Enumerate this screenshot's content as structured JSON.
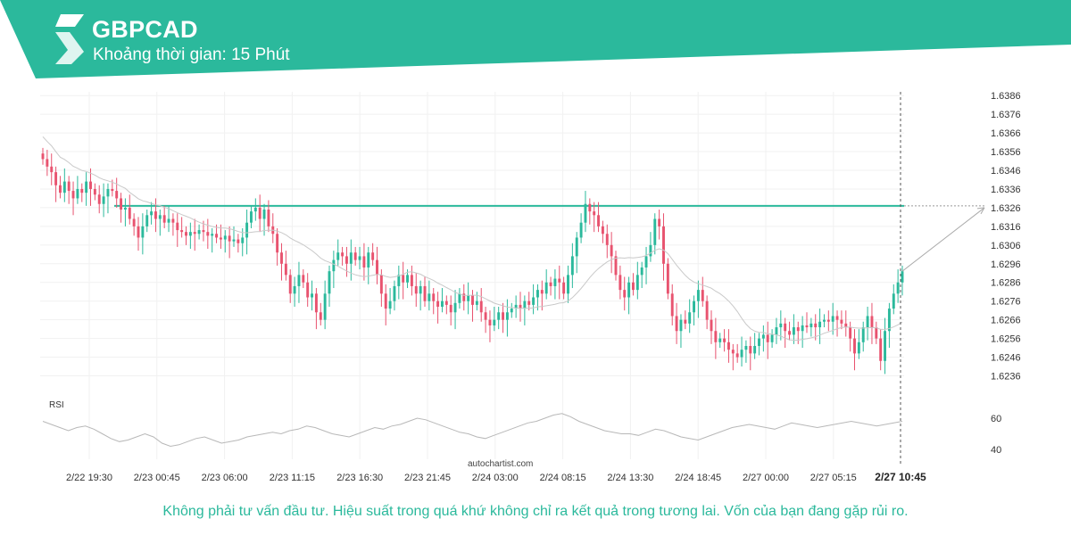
{
  "header": {
    "title": "GBPCAD",
    "subtitle": "Khoảng thời gian: 15 Phút",
    "bg_color": "#2bb99c"
  },
  "footer": {
    "disclaimer": "Không phải tư vấn đầu tư. Hiệu suất trong quá khứ không chỉ ra kết quả trong tương lai. Vốn của bạn đang gặp rủi ro."
  },
  "watermark": "autochartist.com",
  "chart_data": {
    "type": "candlestick",
    "symbol": "GBPCAD",
    "interval": "15 Phút",
    "y_ticks": [
      "1.6386",
      "1.6376",
      "1.6366",
      "1.6356",
      "1.6346",
      "1.6336",
      "1.6326",
      "1.6316",
      "1.6306",
      "1.6296",
      "1.6286",
      "1.6276",
      "1.6266",
      "1.6256",
      "1.6246",
      "1.6236"
    ],
    "ylim": [
      1.6231,
      1.6388
    ],
    "x_tick_labels": [
      "2/22 19:30",
      "2/23 00:45",
      "2/23 06:00",
      "2/23 11:15",
      "2/23 16:30",
      "2/23 21:45",
      "2/24 03:00",
      "2/24 08:15",
      "2/24 13:30",
      "2/24 18:45",
      "2/27 00:00",
      "2/27 05:15"
    ],
    "current_time_label": "2/27 10:45",
    "resistance_level": 1.6327,
    "resistance_start_label": "2/22 19:30",
    "projection": {
      "from": 1.6292,
      "to": 1.6326
    },
    "up_color": "#2bb99c",
    "down_color": "#e8536f",
    "candles": [
      1.6352,
      1.6348,
      1.6345,
      1.6338,
      1.6334,
      1.634,
      1.6335,
      1.6331,
      1.6336,
      1.6334,
      1.634,
      1.6336,
      1.6333,
      1.6328,
      1.6332,
      1.6336,
      1.6335,
      1.6331,
      1.6325,
      1.6326,
      1.632,
      1.6316,
      1.631,
      1.6316,
      1.6322,
      1.6324,
      1.632,
      1.6322,
      1.6318,
      1.632,
      1.6318,
      1.6314,
      1.6313,
      1.6311,
      1.6313,
      1.6312,
      1.6314,
      1.6313,
      1.6311,
      1.6312,
      1.631,
      1.6309,
      1.6311,
      1.6308,
      1.6309,
      1.6307,
      1.631,
      1.6318,
      1.6324,
      1.6326,
      1.632,
      1.6325,
      1.6316,
      1.6312,
      1.6302,
      1.6296,
      1.629,
      1.628,
      1.6284,
      1.629,
      1.6286,
      1.6278,
      1.628,
      1.627,
      1.6266,
      1.628,
      1.6292,
      1.6298,
      1.6302,
      1.63,
      1.6296,
      1.6302,
      1.6298,
      1.63,
      1.6294,
      1.6302,
      1.6298,
      1.629,
      1.628,
      1.6272,
      1.6276,
      1.6284,
      1.629,
      1.6286,
      1.629,
      1.6284,
      1.628,
      1.6284,
      1.6276,
      1.628,
      1.6276,
      1.6273,
      1.6276,
      1.6274,
      1.627,
      1.6275,
      1.628,
      1.6276,
      1.6279,
      1.6274,
      1.6276,
      1.627,
      1.6266,
      1.6263,
      1.6266,
      1.627,
      1.6266,
      1.627,
      1.6272,
      1.6274,
      1.6272,
      1.6276,
      1.6274,
      1.6278,
      1.6282,
      1.628,
      1.6286,
      1.6284,
      1.6288,
      1.6286,
      1.628,
      1.629,
      1.63,
      1.631,
      1.6318,
      1.6328,
      1.6324,
      1.6322,
      1.6316,
      1.6312,
      1.6306,
      1.63,
      1.629,
      1.6282,
      1.6278,
      1.6286,
      1.6282,
      1.629,
      1.6294,
      1.63,
      1.6306,
      1.632,
      1.6316,
      1.6296,
      1.628,
      1.6268,
      1.626,
      1.6266,
      1.6264,
      1.627,
      1.6276,
      1.6282,
      1.6276,
      1.6266,
      1.626,
      1.6254,
      1.6256,
      1.6254,
      1.625,
      1.6248,
      1.6246,
      1.625,
      1.6252,
      1.6248,
      1.6252,
      1.6256,
      1.6258,
      1.6254,
      1.6258,
      1.6262,
      1.6264,
      1.626,
      1.6258,
      1.6262,
      1.626,
      1.6263,
      1.6262,
      1.6264,
      1.6262,
      1.6265,
      1.6266,
      1.6265,
      1.6268,
      1.6266,
      1.6264,
      1.6262,
      1.6256,
      1.6248,
      1.6254,
      1.6262,
      1.6268,
      1.6262,
      1.6256,
      1.6244,
      1.626,
      1.6272,
      1.628,
      1.6286,
      1.6292
    ],
    "indicator": {
      "name": "RSI",
      "y_ticks": [
        "60",
        "40"
      ],
      "ylim": [
        32,
        68
      ],
      "values": [
        58,
        56,
        54,
        52,
        54,
        55,
        53,
        50,
        47,
        45,
        46,
        48,
        50,
        48,
        44,
        42,
        43,
        45,
        47,
        48,
        46,
        44,
        45,
        46,
        48,
        49,
        50,
        51,
        50,
        52,
        53,
        55,
        54,
        52,
        50,
        49,
        48,
        50,
        52,
        54,
        53,
        55,
        56,
        58,
        60,
        59,
        57,
        55,
        53,
        51,
        50,
        48,
        47,
        49,
        51,
        53,
        55,
        57,
        58,
        60,
        62,
        63,
        61,
        58,
        56,
        54,
        52,
        51,
        50,
        50,
        49,
        51,
        53,
        52,
        50,
        48,
        47,
        46,
        48,
        50,
        52,
        54,
        55,
        56,
        55,
        54,
        53,
        55,
        57,
        56,
        55,
        54,
        55,
        56,
        57,
        58,
        57,
        56,
        55,
        56,
        57,
        58
      ]
    }
  }
}
